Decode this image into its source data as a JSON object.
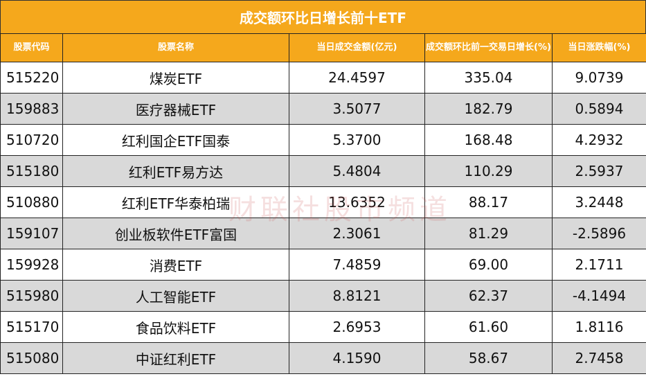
{
  "title": "成交额环比日增长前十ETF",
  "table": {
    "header": [
      "股票代码",
      "股票名称",
      "当日成交金额(亿元)",
      "成交额环比前一交易日增长(%)",
      "当日涨跌幅(%)"
    ],
    "rows": [
      [
        "515220",
        "煤炭ETF",
        "24.4597",
        "335.04",
        "9.0739"
      ],
      [
        "159883",
        "医疗器械ETF",
        "3.5077",
        "182.79",
        "0.5894"
      ],
      [
        "510720",
        "红利国企ETF国泰",
        "5.3700",
        "168.48",
        "4.2932"
      ],
      [
        "515180",
        "红利ETF易方达",
        "5.4804",
        "110.29",
        "2.5937"
      ],
      [
        "510880",
        "红利ETF华泰柏瑞",
        "13.6352",
        "88.17",
        "3.2448"
      ],
      [
        "159107",
        "创业板软件ETF富国",
        "2.3061",
        "81.29",
        "-2.5896"
      ],
      [
        "159928",
        "消费ETF",
        "7.4859",
        "69.00",
        "2.1711"
      ],
      [
        "515980",
        "人工智能ETF",
        "8.8121",
        "62.37",
        "-4.1494"
      ],
      [
        "515170",
        "食品饮料ETF",
        "2.6953",
        "61.60",
        "1.8116"
      ],
      [
        "515080",
        "中证红利ETF",
        "4.1590",
        "58.67",
        "2.7458"
      ]
    ]
  },
  "watermark": "财联社股市频道"
}
